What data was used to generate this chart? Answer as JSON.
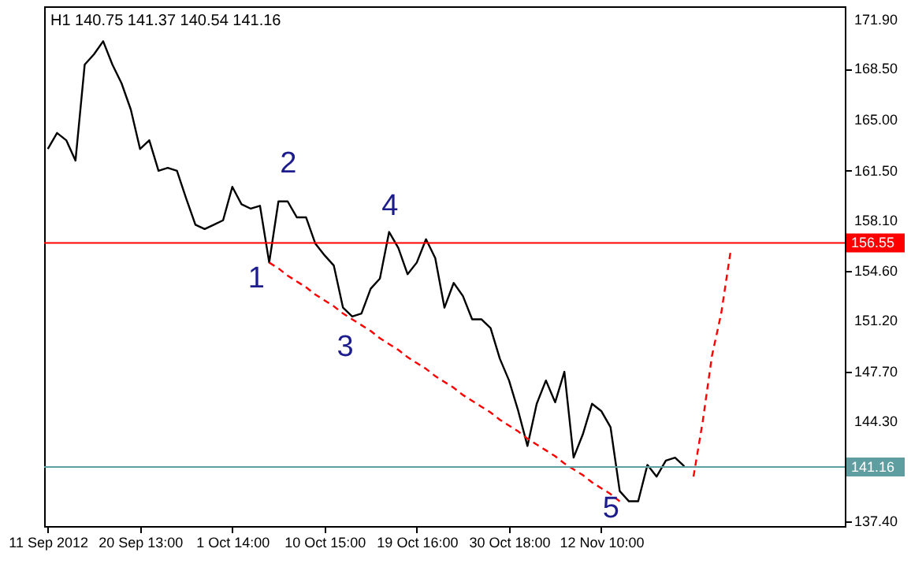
{
  "chart_data": {
    "type": "line",
    "title": "H1 140.75 141.37 140.54 141.16",
    "categories": [
      "11 Sep 2012",
      null,
      null,
      null,
      null,
      null,
      null,
      null,
      null,
      null,
      "20 Sep 13:00",
      null,
      null,
      null,
      null,
      null,
      null,
      null,
      null,
      null,
      "1 Oct 14:00",
      null,
      null,
      null,
      null,
      null,
      null,
      null,
      null,
      null,
      "10 Oct 15:00",
      null,
      null,
      null,
      null,
      null,
      null,
      null,
      null,
      null,
      "19 Oct 16:00",
      null,
      null,
      null,
      null,
      null,
      null,
      null,
      null,
      null,
      "30 Oct 18:00",
      null,
      null,
      null,
      null,
      null,
      null,
      null,
      null,
      null,
      "12 Nov 10:00",
      null,
      null,
      null,
      null,
      null,
      null,
      null,
      null,
      null,
      null,
      null,
      null,
      null,
      null,
      null,
      null,
      null,
      null,
      null,
      null,
      null,
      null,
      null,
      null,
      null,
      null
    ],
    "ylim": [
      137.1,
      172.8
    ],
    "yticks": [
      {
        "value": 137.4,
        "label": "137.40"
      },
      {
        "value": 144.3,
        "label": "144.30"
      },
      {
        "value": 147.7,
        "label": "147.70"
      },
      {
        "value": 151.2,
        "label": "151.20"
      },
      {
        "value": 154.6,
        "label": "154.60"
      },
      {
        "value": 158.1,
        "label": "158.10"
      },
      {
        "value": 161.5,
        "label": "161.50"
      },
      {
        "value": 165.0,
        "label": "165.00"
      },
      {
        "value": 168.5,
        "label": "168.50"
      },
      {
        "value": 171.9,
        "label": "171.90"
      }
    ],
    "grid": false,
    "series": [
      {
        "color": "#000000",
        "line_style": "solid",
        "values": [
          163.0,
          164.1,
          163.6,
          162.2,
          168.8,
          169.5,
          170.4,
          168.8,
          167.5,
          165.7,
          163.0,
          163.6,
          161.5,
          161.7,
          161.5,
          159.6,
          157.8,
          157.5,
          157.8,
          158.1,
          160.4,
          159.2,
          158.9,
          159.1,
          155.2,
          159.4,
          159.4,
          158.3,
          158.3,
          156.5,
          155.7,
          155.0,
          152.1,
          151.5,
          151.7,
          153.4,
          154.1,
          157.3,
          156.2,
          154.4,
          155.2,
          156.8,
          155.5,
          152.1,
          153.8,
          152.9,
          151.3,
          151.3,
          150.7,
          148.6,
          147.1,
          145.0,
          142.6,
          145.5,
          147.1,
          145.6,
          147.7,
          141.8,
          143.4,
          145.5,
          145.0,
          143.9,
          139.5,
          138.8,
          138.8,
          141.3,
          140.5,
          141.6,
          141.8,
          141.2,
          null,
          null,
          null,
          null,
          null,
          null,
          null,
          null,
          null,
          null,
          null,
          null,
          null,
          null,
          null,
          null,
          null
        ]
      },
      {
        "color": "#ff0000",
        "line_style": "dashed",
        "values": [
          null,
          null,
          null,
          null,
          null,
          null,
          null,
          null,
          null,
          null,
          null,
          null,
          null,
          null,
          null,
          null,
          null,
          null,
          null,
          null,
          null,
          null,
          null,
          null,
          155.2,
          154.8,
          154.3,
          153.9,
          153.5,
          153.0,
          152.6,
          152.2,
          151.7,
          151.3,
          150.9,
          150.5,
          150.0,
          149.6,
          149.2,
          148.7,
          148.3,
          147.9,
          147.4,
          147.0,
          146.6,
          146.1,
          145.7,
          145.3,
          144.9,
          144.4,
          144.0,
          143.6,
          143.1,
          142.7,
          142.3,
          141.9,
          141.4,
          141.0,
          140.6,
          140.1,
          139.7,
          139.3,
          138.8,
          null,
          null,
          null,
          null,
          null,
          null,
          null,
          null,
          null,
          null,
          null,
          null,
          null,
          null,
          null,
          null,
          null,
          null,
          null,
          null,
          null,
          null,
          null,
          null
        ]
      },
      {
        "color": "#ff0000",
        "line_style": "dashed",
        "values": [
          null,
          null,
          null,
          null,
          null,
          null,
          null,
          null,
          null,
          null,
          null,
          null,
          null,
          null,
          null,
          null,
          null,
          null,
          null,
          null,
          null,
          null,
          null,
          null,
          null,
          null,
          null,
          null,
          null,
          null,
          null,
          null,
          null,
          null,
          null,
          null,
          null,
          null,
          null,
          null,
          null,
          null,
          null,
          null,
          null,
          null,
          null,
          null,
          null,
          null,
          null,
          null,
          null,
          null,
          null,
          null,
          null,
          null,
          null,
          null,
          null,
          null,
          null,
          null,
          null,
          null,
          null,
          null,
          null,
          null,
          140.5,
          144.3,
          148.8,
          151.7,
          155.9,
          null,
          null,
          null,
          null,
          null,
          null,
          null,
          null,
          null,
          null,
          null,
          null
        ]
      }
    ],
    "ref_lines": [
      {
        "axis": "y",
        "value": 156.55,
        "label": "156.55",
        "color": "#ff0000"
      },
      {
        "axis": "y",
        "value": 141.16,
        "label": "141.16",
        "color": "#5f9ea0"
      }
    ],
    "annotations": [
      "1",
      "2",
      "3",
      "4",
      "5"
    ]
  }
}
